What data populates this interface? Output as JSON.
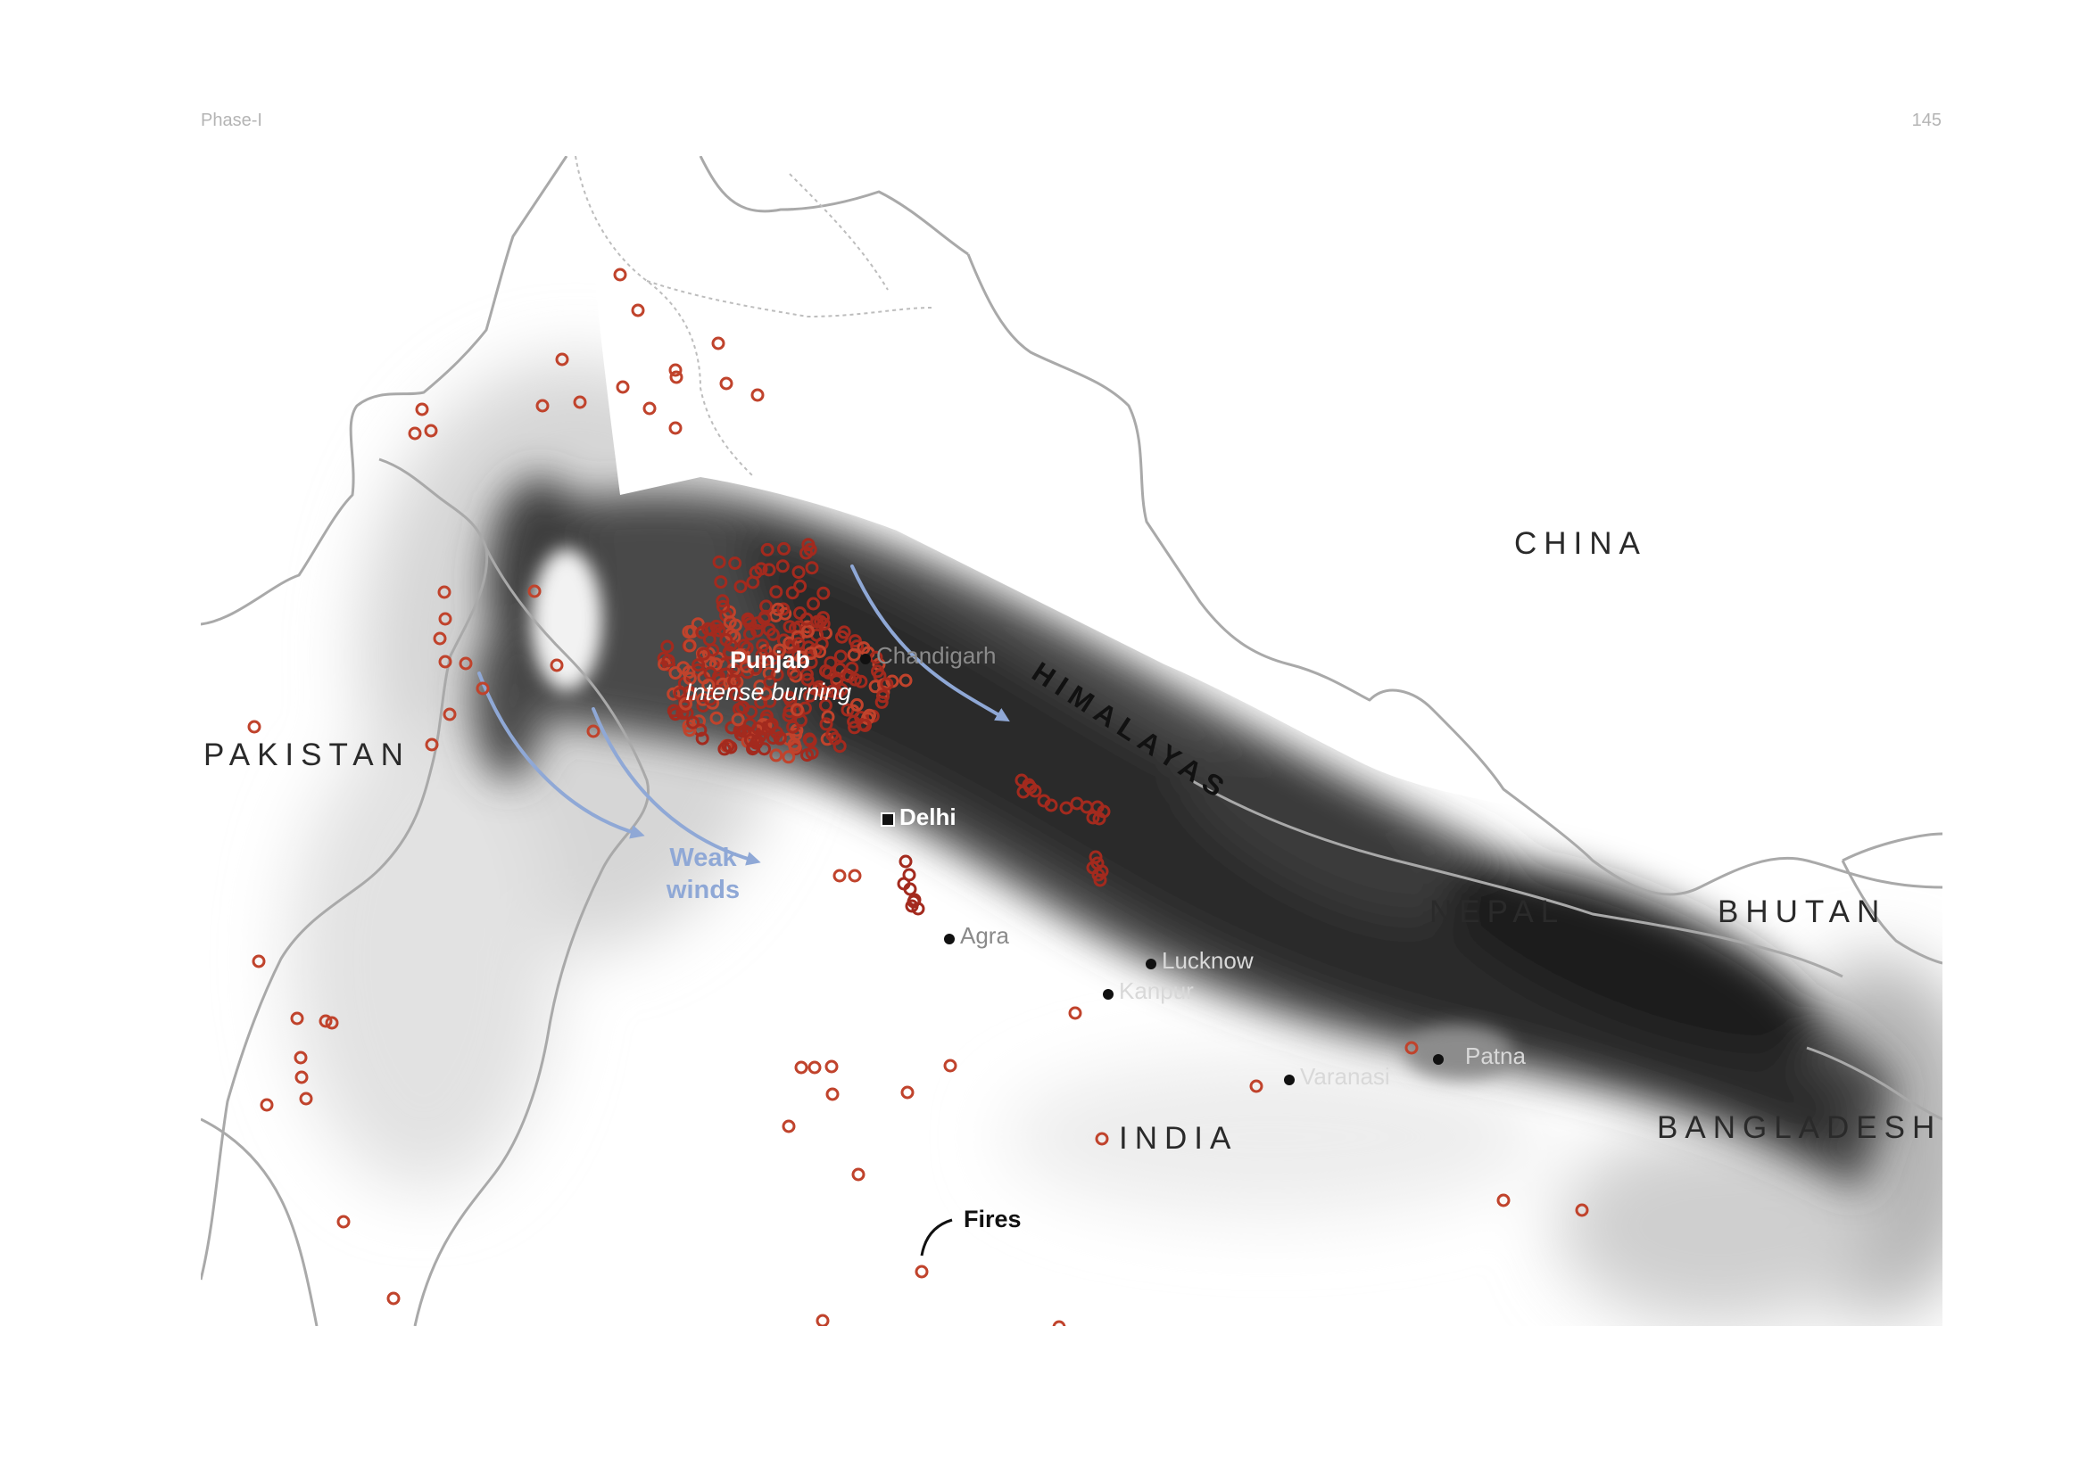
{
  "header": {
    "left": "Phase-I",
    "right": "145"
  },
  "map": {
    "countries": {
      "china": "CHINA",
      "pakistan": "PAKISTAN",
      "nepal": "NEPAL",
      "bhutan": "BHUTAN",
      "bangladesh": "BANGLADESH",
      "india": "INDIA"
    },
    "mountains": "HIMALAYAS",
    "cities": {
      "chandigarh": "Chandigarh",
      "delhi": "Delhi",
      "agra": "Agra",
      "lucknow": "Lucknow",
      "kanpur": "Kanpur",
      "varanasi": "Varanasi",
      "patna": "Patna"
    },
    "annotations": {
      "punjab": "Punjab",
      "intense_burning": "Intense burning",
      "weak_winds_line1": "Weak",
      "weak_winds_line2": "winds",
      "fires": "Fires"
    },
    "colors": {
      "fire_marker": "#c0432c",
      "fire_marker_dense": "#a32a1e",
      "smoke": "#2e2e2e",
      "wind_arrow": "#8fa8d6",
      "border": "#a9a9a9"
    }
  }
}
